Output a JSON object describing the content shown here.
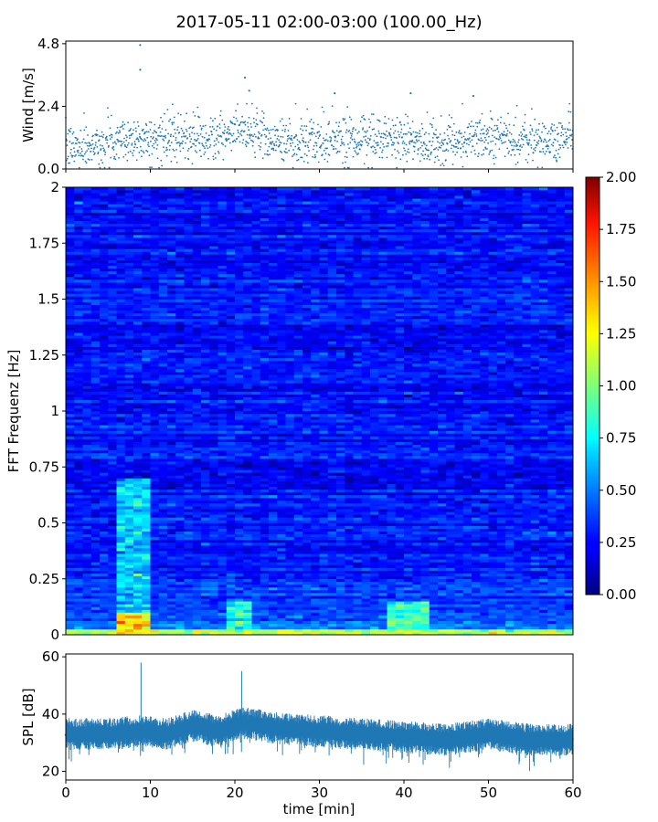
{
  "title": "2017-05-11 02:00-03:00 (100.00_Hz)",
  "colors": {
    "series": "#1f77b4",
    "colormap": "jet",
    "axes": "#000000",
    "background": "#ffffff"
  },
  "chart_data": [
    {
      "type": "scatter",
      "ylabel": "Wind [m/s]",
      "xlim": [
        0,
        60
      ],
      "ylim": [
        0,
        4.9
      ],
      "yticks": [
        "0.0",
        "2.4",
        "4.8"
      ],
      "xticks": [
        "0",
        "10",
        "20",
        "30",
        "40",
        "50",
        "60"
      ],
      "series_profile": {
        "x": [
          0,
          5,
          8.5,
          10,
          15,
          20,
          21.5,
          25,
          30,
          32,
          35,
          40,
          42,
          45,
          50,
          55,
          60
        ],
        "y": [
          0.8,
          1.0,
          1.2,
          1.1,
          1.1,
          1.3,
          1.5,
          1.1,
          1.0,
          1.2,
          1.0,
          1.2,
          0.9,
          1.0,
          1.3,
          1.0,
          1.3
        ]
      },
      "peaks": [
        {
          "x": 8.8,
          "y": 4.75
        },
        {
          "x": 8.8,
          "y": 3.8
        },
        {
          "x": 21.2,
          "y": 3.5
        },
        {
          "x": 21.7,
          "y": 3.0
        },
        {
          "x": 31.8,
          "y": 2.9
        },
        {
          "x": 40.8,
          "y": 2.9
        },
        {
          "x": 48.2,
          "y": 2.8
        }
      ]
    },
    {
      "type": "heatmap",
      "ylabel": "FFT Frequenz [Hz]",
      "xlim": [
        0,
        60
      ],
      "ylim": [
        0,
        2
      ],
      "yticks": [
        "0",
        "0.25",
        "0.5",
        "0.75",
        "1",
        "1.25",
        "1.5",
        "1.75",
        "2"
      ],
      "colorbar": {
        "range": [
          0,
          2
        ],
        "ticks": [
          "0.00",
          "0.25",
          "0.50",
          "0.75",
          "1.00",
          "1.25",
          "1.50",
          "1.75",
          "2.00"
        ]
      },
      "typical_value": 0.28,
      "hotspots": [
        {
          "t": [
            6.5,
            9.5
          ],
          "f": [
            0,
            0.1
          ],
          "value": 1.3
        },
        {
          "t": [
            6.5,
            9.5
          ],
          "f": [
            0.1,
            0.7
          ],
          "value": 0.65
        },
        {
          "t": [
            0,
            60
          ],
          "f": [
            0,
            0.03
          ],
          "value": 1.1
        },
        {
          "t": [
            19,
            22
          ],
          "f": [
            0,
            0.15
          ],
          "value": 0.8
        },
        {
          "t": [
            38.5,
            43
          ],
          "f": [
            0,
            0.15
          ],
          "value": 0.85
        }
      ]
    },
    {
      "type": "area",
      "ylabel": "SPL [dB]",
      "xlabel": "time [min]",
      "xlim": [
        0,
        60
      ],
      "ylim": [
        17,
        61
      ],
      "yticks": [
        "20",
        "40",
        "60"
      ],
      "xticks": [
        "0",
        "10",
        "20",
        "30",
        "40",
        "50",
        "60"
      ],
      "center": {
        "x": [
          0,
          5,
          9,
          12,
          15,
          18,
          21,
          25,
          30,
          35,
          40,
          45,
          50,
          55,
          60
        ],
        "y": [
          33,
          33,
          34,
          33,
          36,
          34,
          37,
          35,
          34,
          33,
          32,
          31,
          33,
          31,
          31
        ]
      },
      "spread": 4,
      "spikes": [
        {
          "x": 8.9,
          "y": 58
        },
        {
          "x": 20.8,
          "y": 55
        }
      ]
    }
  ]
}
